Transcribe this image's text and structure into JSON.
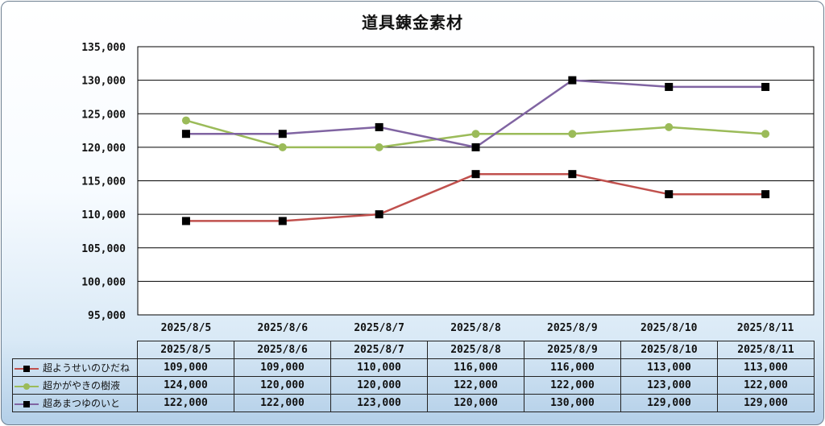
{
  "chart_data": {
    "type": "line",
    "title": "道具錬金素材",
    "categories": [
      "2025/8/5",
      "2025/8/6",
      "2025/8/7",
      "2025/8/8",
      "2025/8/9",
      "2025/8/10",
      "2025/8/11"
    ],
    "ylim": [
      95000,
      135000
    ],
    "yticks": [
      "95,000",
      "100,000",
      "105,000",
      "110,000",
      "115,000",
      "120,000",
      "125,000",
      "130,000",
      "135,000"
    ],
    "grid": true,
    "legend": "data-table",
    "series": [
      {
        "name": "超ようせいのひだね",
        "color": "#c0504d",
        "marker": "square",
        "marker_color": "#000000",
        "values": [
          109000,
          109000,
          110000,
          116000,
          116000,
          113000,
          113000
        ],
        "labels": [
          "109,000",
          "109,000",
          "110,000",
          "116,000",
          "116,000",
          "113,000",
          "113,000"
        ]
      },
      {
        "name": "超かがやきの樹液",
        "color": "#9bbb59",
        "marker": "circle",
        "marker_color": "#9bbb59",
        "values": [
          124000,
          120000,
          120000,
          122000,
          122000,
          123000,
          122000
        ],
        "labels": [
          "124,000",
          "120,000",
          "120,000",
          "122,000",
          "122,000",
          "123,000",
          "122,000"
        ]
      },
      {
        "name": "超あまつゆのいと",
        "color": "#8064a2",
        "marker": "square",
        "marker_color": "#000000",
        "values": [
          122000,
          122000,
          123000,
          120000,
          130000,
          129000,
          129000
        ],
        "labels": [
          "122,000",
          "122,000",
          "123,000",
          "120,000",
          "130,000",
          "129,000",
          "129,000"
        ]
      }
    ]
  }
}
